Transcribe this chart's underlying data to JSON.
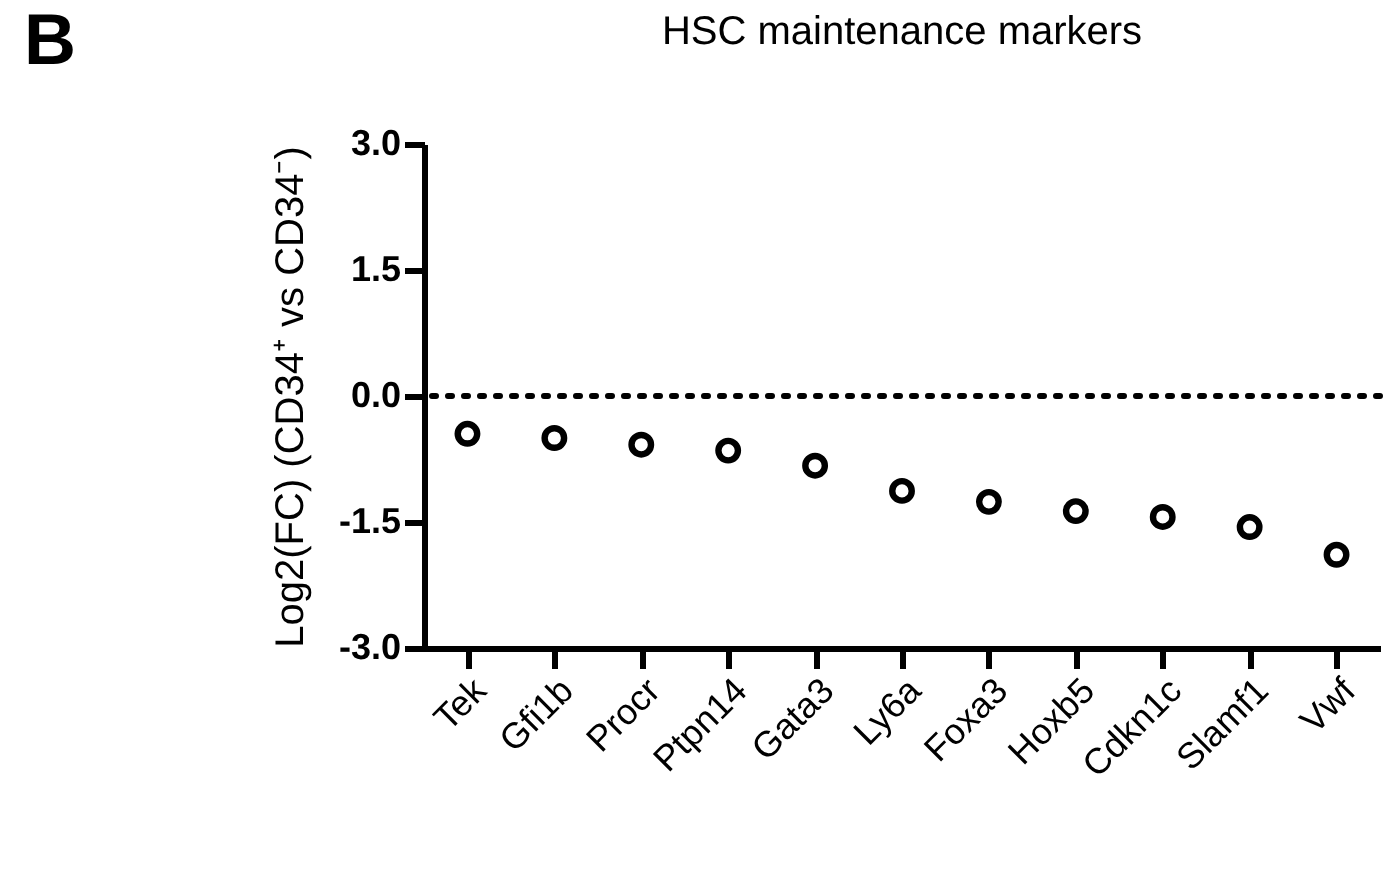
{
  "chart_data": {
    "type": "scatter",
    "title": "HSC maintenance markers",
    "ylabel": "Log2(FC) (CD34⁺ vs CD34⁻)",
    "annotations": [
      "B"
    ],
    "categories": [
      "Tek",
      "Gfi1b",
      "Procr",
      "Ptpn14",
      "Gata3",
      "Ly6a",
      "Foxa3",
      "Hoxb5",
      "Cdkn1c",
      "Slamf1",
      "Vwf"
    ],
    "series": [
      {
        "color": "#000000",
        "values": [
          -0.45,
          -0.5,
          -0.58,
          -0.65,
          -0.83,
          -1.13,
          -1.26,
          -1.37,
          -1.44,
          -1.56,
          -1.89
        ]
      }
    ],
    "ylim": [
      -3,
      3
    ],
    "yticks": [
      {
        "value": -3,
        "label": "-3.0"
      },
      {
        "value": -1.5,
        "label": "-1.5"
      },
      {
        "value": 0,
        "label": "0.0"
      },
      {
        "value": 1.5,
        "label": "1.5"
      },
      {
        "value": 3,
        "label": "3.0"
      }
    ],
    "ref_lines": [
      {
        "axis": "y",
        "value": 0,
        "line_style": "dotted",
        "color": "#000000"
      }
    ],
    "marker": "circle",
    "grid": false
  }
}
